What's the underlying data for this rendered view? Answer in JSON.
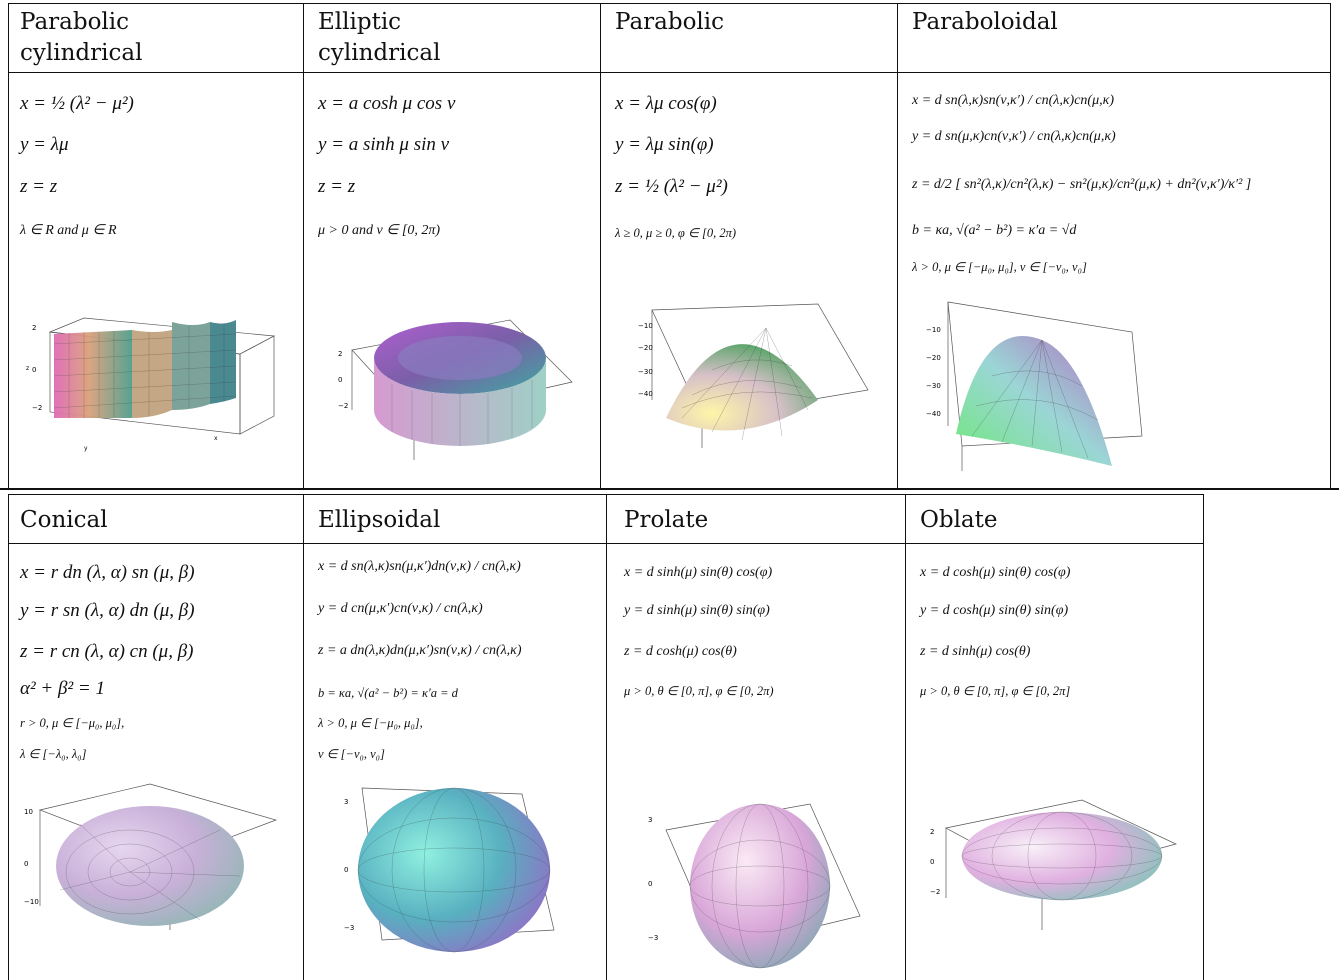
{
  "top_row": [
    {
      "header": [
        "Parabolic",
        "cylindrical"
      ],
      "equations": [
        "x = ½ (λ² − μ²)",
        "y = λμ",
        "z = z",
        "λ ∈ R and μ ∈ R"
      ],
      "plot_icon": "parabolic-cylinder-surface"
    },
    {
      "header": [
        "Elliptic",
        "cylindrical"
      ],
      "equations": [
        "x = a cosh μ cos ν",
        "y = a sinh μ sin ν",
        "z = z",
        "μ > 0 and ν ∈ [0, 2π)"
      ],
      "plot_icon": "elliptic-cylinder-surface"
    },
    {
      "header": [
        "Parabolic"
      ],
      "equations": [
        "x = λμ cos(φ)",
        "y = λμ sin(φ)",
        "z = ½ (λ² − μ²)",
        "λ ≥ 0, μ ≥ 0, φ ∈ [0, 2π)"
      ],
      "plot_icon": "paraboloid-surface"
    },
    {
      "header": [
        "Paraboloidal"
      ],
      "equations": [
        "x = d sn(λ,κ)sn(ν,κ′) / cn(λ,κ)cn(μ,κ)",
        "y = d sn(μ,κ)cn(ν,κ′) / cn(λ,κ)cn(μ,κ)",
        "z = d/2 [ sn²(λ,κ)/cn²(λ,κ) − sn²(μ,κ)/cn²(μ,κ) + dn²(ν,κ′)/κ′² ]",
        "b = κa, √(a² − b²) = κ′a = √d",
        "λ > 0, μ ∈ [−μ₀, μ₀], ν ∈ [−ν₀, ν₀]"
      ],
      "plot_icon": "paraboloidal-surface"
    }
  ],
  "bottom_row": [
    {
      "header": [
        "Conical"
      ],
      "equations": [
        "x = r dn (λ, α) sn (μ, β)",
        "y = r sn (λ, α) dn (μ, β)",
        "z = r cn (λ, α) cn (μ, β)",
        "α² + β² = 1",
        "r > 0, μ ∈ [−μ₀, μ₀],",
        "λ ∈ [−λ₀, λ₀]"
      ],
      "plot_icon": "conical-ellipsoid-surface"
    },
    {
      "header": [
        "Ellipsoidal"
      ],
      "equations": [
        "x = d sn(λ,κ)sn(μ,κ′)dn(ν,κ) / cn(λ,κ)",
        "y = d cn(μ,κ′)cn(ν,κ) / cn(λ,κ)",
        "z = a dn(λ,κ)dn(μ,κ′)sn(ν,κ) / cn(λ,κ)",
        "b = κa, √(a² − b²) = κ′a = d",
        "λ > 0, μ ∈ [−μ₀, μ₀],",
        "ν ∈ [−ν₀, ν₀]"
      ],
      "plot_icon": "ellipsoid-surface"
    },
    {
      "header": [
        "Prolate"
      ],
      "equations": [
        "x = d sinh(μ) sin(θ) cos(φ)",
        "y = d sinh(μ) sin(θ) sin(φ)",
        "z = d cosh(μ) cos(θ)",
        "μ > 0, θ ∈ [0, π], φ ∈ [0, 2π)"
      ],
      "plot_icon": "prolate-spheroid-surface"
    },
    {
      "header": [
        "Oblate"
      ],
      "equations": [
        "x = d cosh(μ) sin(θ) cos(φ)",
        "y = d cosh(μ) sin(θ) sin(φ)",
        "z = d sinh(μ) cos(θ)",
        "μ > 0, θ ∈ [0, π], φ ∈ [0, 2π]"
      ],
      "plot_icon": "oblate-spheroid-surface"
    }
  ]
}
